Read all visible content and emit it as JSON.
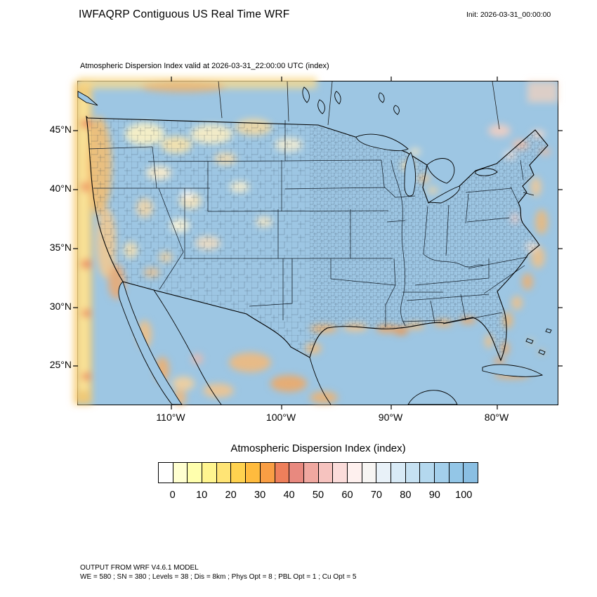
{
  "header": {
    "title": "IWFAQRP Contiguous US Real Time WRF",
    "init_label": "Init: 2026-03-31_00:00:00"
  },
  "map": {
    "subtitle": "Atmospheric Dispersion Index valid at 2026-03-31_22:00:00 UTC   (index)",
    "lat_ticks": [
      "45°N",
      "40°N",
      "35°N",
      "30°N",
      "25°N"
    ],
    "lon_ticks": [
      "110°W",
      "100°W",
      "90°W",
      "80°W"
    ]
  },
  "chart_data": {
    "type": "heatmap",
    "title": "Atmospheric Dispersion Index valid at 2026-03-31_22:00:00 UTC (index)",
    "variable": "Atmospheric Dispersion Index",
    "units": "index",
    "region": "Contiguous US (WRF model domain)",
    "axes": {
      "lat_tick_labels_deg_n": [
        45,
        40,
        35,
        30,
        25
      ],
      "lon_tick_labels_deg_w": [
        110,
        100,
        90,
        80
      ],
      "grid": false
    },
    "colorbar": {
      "title": "Atmospheric Dispersion Index  (index)",
      "tick_labels": [
        0,
        10,
        20,
        30,
        40,
        50,
        60,
        70,
        80,
        90,
        100
      ],
      "colors": [
        "#ffffff",
        "#ffffd0",
        "#ffffad",
        "#fff58f",
        "#ffe475",
        "#ffd24f",
        "#ffbb3e",
        "#f99e44",
        "#ee7f5b",
        "#e8897f",
        "#f0a8a0",
        "#f6c3bf",
        "#fbdcda",
        "#fef0ee",
        "#f7f5f3",
        "#e8f1f8",
        "#d8eaf6",
        "#c6e1f2",
        "#b4d8ee",
        "#a3cfeb",
        "#93c6e7",
        "#8abfe3"
      ],
      "position": "bottom"
    },
    "field_summary": "Field is predominantly high ADI (~90-100, light blue) across the CONUS interior and oceans; low-ADI yellow/orange/pink patches appear over western mountain terrain, along the Pacific, Gulf and Atlantic coastal fringes, around the Great Lakes, over Mexico/Baja California, and in a band along the western domain boundary."
  },
  "footer": {
    "line1": "OUTPUT FROM WRF V4.6.1 MODEL",
    "line2": "WE = 580 ; SN = 380 ; Levels = 38 ; Dis = 8km ; Phys Opt = 8 ; PBL Opt = 1 ; Cu Opt = 5"
  }
}
